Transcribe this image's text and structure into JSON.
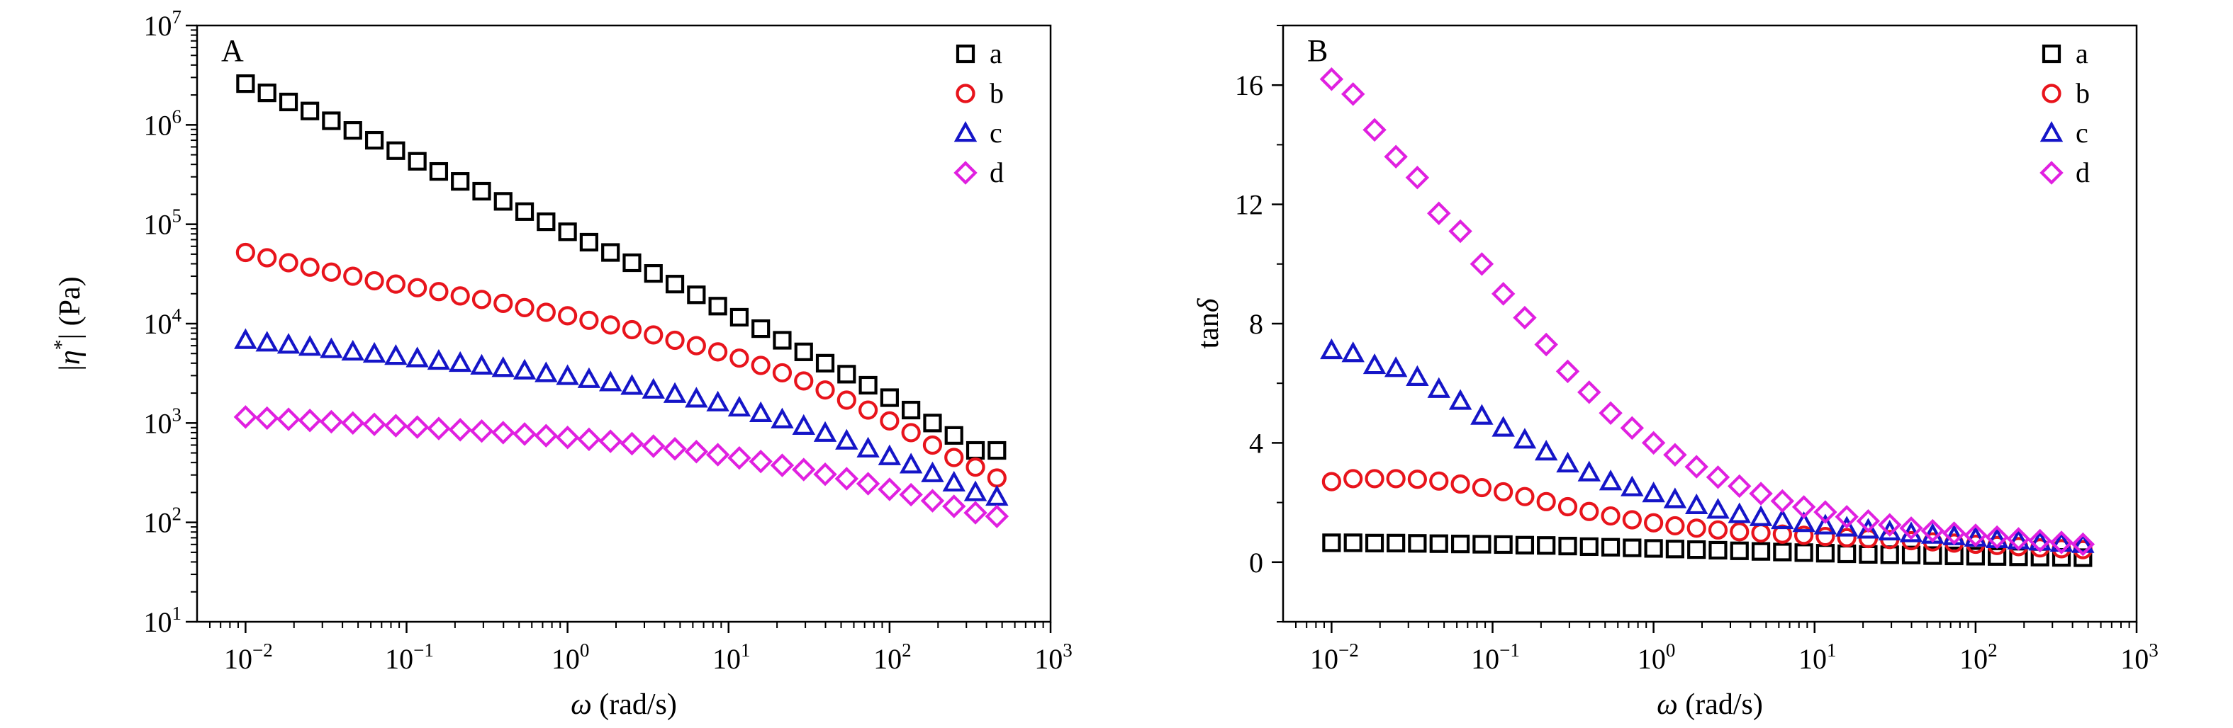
{
  "chart_data": [
    {
      "panel": "A",
      "type": "scatter",
      "xlabel": "ω (rad/s)",
      "ylabel": "|η*| (Pa)",
      "xscale": "log",
      "yscale": "log",
      "xlim": [
        0.005,
        1000
      ],
      "ylim": [
        10,
        10000000
      ],
      "x_ticks": [
        "10^-2",
        "10^-1",
        "10^0",
        "10^1",
        "10^2",
        "10^3"
      ],
      "y_ticks": [
        "10^1",
        "10^2",
        "10^3",
        "10^4",
        "10^5",
        "10^6",
        "10^7"
      ],
      "legend_position": "top-right",
      "x": [
        0.01,
        0.0136,
        0.0185,
        0.0251,
        0.0341,
        0.0464,
        0.0631,
        0.0858,
        0.1166,
        0.1585,
        0.2154,
        0.2929,
        0.3981,
        0.5412,
        0.7356,
        1.0,
        1.359,
        1.848,
        2.512,
        3.415,
        4.642,
        6.31,
        8.577,
        11.66,
        15.85,
        21.54,
        29.29,
        39.81,
        54.12,
        73.56,
        100,
        135.9,
        184.8,
        251.2,
        341.5,
        464.2
      ],
      "series": [
        {
          "name": "a",
          "color": "#000000",
          "marker": "square",
          "values": [
            2600000,
            2100000,
            1700000,
            1380000,
            1100000,
            880000,
            700000,
            550000,
            430000,
            340000,
            270000,
            215000,
            170000,
            134000,
            106000,
            84000,
            66000,
            52000,
            41000,
            32000,
            25000,
            19500,
            15000,
            11600,
            8900,
            6800,
            5200,
            4000,
            3100,
            2400,
            1800,
            1350,
            1000,
            750,
            530,
            530
          ]
        },
        {
          "name": "b",
          "color": "#e8141c",
          "marker": "circle",
          "values": [
            52000,
            46000,
            41000,
            37000,
            33000,
            30000,
            27000,
            25000,
            23000,
            21000,
            19000,
            17500,
            16000,
            14500,
            13000,
            12000,
            10800,
            9700,
            8700,
            7700,
            6800,
            6000,
            5200,
            4500,
            3800,
            3200,
            2650,
            2150,
            1700,
            1350,
            1050,
            800,
            600,
            450,
            360,
            280
          ]
        },
        {
          "name": "c",
          "color": "#1515c8",
          "marker": "triangle",
          "values": [
            6800,
            6400,
            6100,
            5800,
            5500,
            5200,
            4950,
            4700,
            4450,
            4200,
            4000,
            3750,
            3550,
            3350,
            3150,
            2950,
            2750,
            2550,
            2350,
            2150,
            1950,
            1750,
            1600,
            1420,
            1250,
            1080,
            930,
            790,
            660,
            550,
            460,
            380,
            310,
            250,
            200,
            180
          ]
        },
        {
          "name": "d",
          "color": "#e020e0",
          "marker": "diamond",
          "values": [
            1150,
            1120,
            1090,
            1060,
            1030,
            1000,
            970,
            940,
            910,
            880,
            855,
            830,
            800,
            775,
            745,
            715,
            685,
            655,
            620,
            585,
            550,
            515,
            480,
            445,
            410,
            375,
            340,
            305,
            275,
            245,
            215,
            190,
            165,
            145,
            125,
            115
          ]
        }
      ]
    },
    {
      "panel": "B",
      "type": "scatter",
      "xlabel": "ω (rad/s)",
      "ylabel": "tanδ",
      "xscale": "log",
      "yscale": "linear",
      "xlim": [
        0.005,
        1000
      ],
      "ylim": [
        -2,
        18
      ],
      "x_ticks": [
        "10^-2",
        "10^-1",
        "10^0",
        "10^1",
        "10^2",
        "10^3"
      ],
      "y_ticks": [
        "0",
        "4",
        "8",
        "12",
        "16"
      ],
      "legend_position": "top-right",
      "x": [
        0.01,
        0.0136,
        0.0185,
        0.0251,
        0.0341,
        0.0464,
        0.0631,
        0.0858,
        0.1166,
        0.1585,
        0.2154,
        0.2929,
        0.3981,
        0.5412,
        0.7356,
        1.0,
        1.359,
        1.848,
        2.512,
        3.415,
        4.642,
        6.31,
        8.577,
        11.66,
        15.85,
        21.54,
        29.29,
        39.81,
        54.12,
        73.56,
        100,
        135.9,
        184.8,
        251.2,
        341.5,
        464.2
      ],
      "series": [
        {
          "name": "a",
          "color": "#000000",
          "marker": "square",
          "values": [
            0.65,
            0.65,
            0.64,
            0.64,
            0.63,
            0.62,
            0.61,
            0.6,
            0.59,
            0.57,
            0.56,
            0.54,
            0.52,
            0.5,
            0.48,
            0.46,
            0.44,
            0.42,
            0.4,
            0.38,
            0.36,
            0.34,
            0.32,
            0.3,
            0.28,
            0.26,
            0.25,
            0.24,
            0.22,
            0.21,
            0.2,
            0.19,
            0.18,
            0.17,
            0.16,
            0.15
          ]
        },
        {
          "name": "b",
          "color": "#e8141c",
          "marker": "circle",
          "values": [
            2.7,
            2.8,
            2.8,
            2.8,
            2.78,
            2.72,
            2.62,
            2.5,
            2.36,
            2.2,
            2.03,
            1.86,
            1.7,
            1.55,
            1.42,
            1.32,
            1.22,
            1.14,
            1.08,
            1.02,
            0.98,
            0.94,
            0.9,
            0.86,
            0.82,
            0.79,
            0.76,
            0.72,
            0.68,
            0.64,
            0.6,
            0.56,
            0.52,
            0.48,
            0.45,
            0.42
          ]
        },
        {
          "name": "c",
          "color": "#1515c8",
          "marker": "triangle",
          "values": [
            7.1,
            7.0,
            6.6,
            6.5,
            6.2,
            5.8,
            5.4,
            4.9,
            4.5,
            4.1,
            3.7,
            3.3,
            3.0,
            2.7,
            2.5,
            2.3,
            2.1,
            1.9,
            1.75,
            1.6,
            1.5,
            1.4,
            1.3,
            1.22,
            1.15,
            1.08,
            1.02,
            0.96,
            0.91,
            0.86,
            0.81,
            0.76,
            0.72,
            0.68,
            0.64,
            0.6
          ]
        },
        {
          "name": "d",
          "color": "#e020e0",
          "marker": "diamond",
          "values": [
            16.2,
            15.7,
            14.5,
            13.6,
            12.9,
            11.7,
            11.1,
            10.0,
            9.0,
            8.2,
            7.3,
            6.4,
            5.7,
            5.0,
            4.5,
            4.0,
            3.6,
            3.2,
            2.85,
            2.55,
            2.3,
            2.05,
            1.85,
            1.68,
            1.52,
            1.38,
            1.25,
            1.14,
            1.05,
            0.97,
            0.9,
            0.84,
            0.78,
            0.72,
            0.66,
            0.6
          ]
        }
      ]
    }
  ]
}
